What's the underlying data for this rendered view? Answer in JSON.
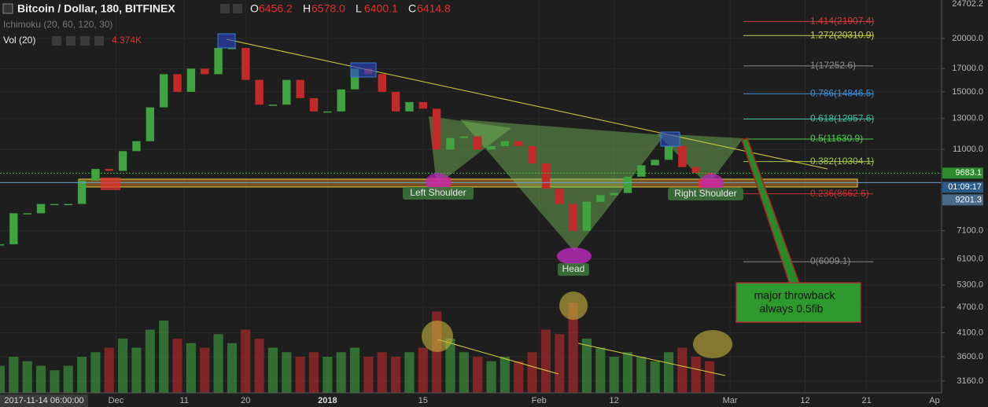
{
  "header": {
    "symbol": "Bitcoin / Dollar, 180, BITFINEX",
    "ohlc": [
      {
        "key": "O",
        "value": "6456.2"
      },
      {
        "key": "H",
        "value": "6578.0"
      },
      {
        "key": "L",
        "value": "6400.1"
      },
      {
        "key": "C",
        "value": "6414.8"
      }
    ],
    "indicator": "Ichimoku (20, 60, 120, 30)",
    "volume_label": "Vol (20)",
    "volume_value": "4.374K"
  },
  "chart_data": {
    "type": "candlestick",
    "x": [
      "2017-11-14",
      "2017-11-16",
      "2017-11-18",
      "2017-11-20",
      "2017-11-22",
      "2017-11-24",
      "2017-11-26",
      "2017-11-28",
      "2017-11-30",
      "2017-12-02",
      "2017-12-04",
      "2017-12-06",
      "2017-12-08",
      "2017-12-10",
      "2017-12-12",
      "2017-12-14",
      "2017-12-16",
      "2017-12-18",
      "2017-12-20",
      "2017-12-22",
      "2017-12-24",
      "2017-12-26",
      "2017-12-28",
      "2017-12-30",
      "2018-01-01",
      "2018-01-03",
      "2018-01-05",
      "2018-01-07",
      "2018-01-09",
      "2018-01-11",
      "2018-01-13",
      "2018-01-15",
      "2018-01-17",
      "2018-01-19",
      "2018-01-21",
      "2018-01-23",
      "2018-01-25",
      "2018-01-27",
      "2018-01-29",
      "2018-01-31",
      "2018-02-02",
      "2018-02-04",
      "2018-02-06",
      "2018-02-08",
      "2018-02-10",
      "2018-02-12",
      "2018-02-14",
      "2018-02-16",
      "2018-02-18",
      "2018-02-20",
      "2018-02-22",
      "2018-02-24",
      "2018-02-26"
    ],
    "values": [
      6600,
      7800,
      7800,
      8200,
      8200,
      8200,
      9300,
      9900,
      9800,
      10900,
      11500,
      13800,
      16500,
      15000,
      17000,
      16500,
      19000,
      19000,
      16000,
      14000,
      14000,
      16000,
      14500,
      13500,
      13500,
      15200,
      17000,
      16500,
      15000,
      13500,
      14200,
      13700,
      11000,
      11700,
      11800,
      11000,
      11200,
      11500,
      11200,
      10200,
      8900,
      8200,
      7100,
      8300,
      8600,
      8700,
      9500,
      10100,
      10400,
      11200,
      10000,
      9700,
      9600
    ],
    "volume": [
      6,
      8,
      7,
      6,
      5,
      6,
      8,
      9,
      10,
      12,
      10,
      14,
      16,
      12,
      11,
      10,
      13,
      11,
      14,
      12,
      10,
      9,
      8,
      9,
      8,
      9,
      10,
      8,
      9,
      8,
      9,
      10,
      18,
      12,
      9,
      8,
      7,
      8,
      7,
      9,
      14,
      13,
      20,
      12,
      10,
      8,
      9,
      8,
      7,
      9,
      10,
      8,
      7
    ],
    "up_color": "#3fa33f",
    "down_color": "#c22a2a",
    "ylim": [
      2965,
      24600
    ],
    "log_scale": true,
    "yticks": [
      24702.2,
      {
        "value": 20000,
        "label": "20000.0"
      },
      {
        "value": 17000,
        "label": "17000.0"
      },
      {
        "value": 15000,
        "label": "15000.0"
      },
      {
        "value": 13000,
        "label": "13000.0"
      },
      {
        "value": 11000,
        "label": "11000.0"
      },
      {
        "value": 7100,
        "label": "7100.0"
      },
      {
        "value": 6100,
        "label": "6100.0"
      },
      {
        "value": 5300,
        "label": "5300.0"
      },
      {
        "value": 4700,
        "label": "4700.0"
      },
      {
        "value": 4100,
        "label": "4100.0"
      },
      {
        "value": 3600,
        "label": "3600.0"
      },
      {
        "value": 3160,
        "label": "3160.0"
      }
    ],
    "xlim": [
      "2017-11-14",
      "2018-04-01"
    ],
    "xticks": [
      {
        "value": "2017-12-01",
        "label": "Dec"
      },
      {
        "value": "2017-12-11",
        "label": "11"
      },
      {
        "value": "2017-12-20",
        "label": "20"
      },
      {
        "value": "2018-01-01",
        "label": "2018"
      },
      {
        "value": "2018-01-15",
        "label": "15"
      },
      {
        "value": "2018-02-01",
        "label": "Feb"
      },
      {
        "value": "2018-02-12",
        "label": "12"
      },
      {
        "value": "2018-03-01",
        "label": "Mar"
      },
      {
        "value": "2018-03-12",
        "label": "12"
      },
      {
        "value": "2018-03-21",
        "label": "21"
      },
      {
        "value": "2018-04-01",
        "label": "Ap"
      }
    ],
    "cursor_label": "2017-11-14 06:00:00",
    "grid": true,
    "price_tags": [
      {
        "value": 9683.1,
        "color": "#2e8b2e"
      },
      {
        "value": 9201.3,
        "color": "#4a6a8a"
      }
    ],
    "countdown": "01:09:17",
    "fib_levels": [
      {
        "value": 21907.4,
        "label": "1.414(21907.4)",
        "color": "#d23b3b"
      },
      {
        "value": 20310.9,
        "label": "1.272(20310.9)",
        "color": "#c8d24a"
      },
      {
        "value": 17252.6,
        "label": "1(17252.6)",
        "color": "#8a8a8a"
      },
      {
        "value": 14846.5,
        "label": "0.786(14846.5)",
        "color": "#3d8fd6"
      },
      {
        "value": 12957.6,
        "label": "0.618(12957.6)",
        "color": "#3fc0a0"
      },
      {
        "value": 11630.9,
        "label": "0.5(11630.9)",
        "color": "#4ccf4c"
      },
      {
        "value": 10304.1,
        "label": "0.382(10304.1)",
        "color": "#a4c84a"
      },
      {
        "value": 8662.6,
        "label": "0.236(8662.6)",
        "color": "#c83030"
      },
      {
        "value": 6009.1,
        "label": "0(6009.1)",
        "color": "#8a8a8a"
      }
    ],
    "annotations": {
      "left_shoulder": "Left Shoulder",
      "head": "Head",
      "right_shoulder": "Right Shoulder",
      "note": [
        "major throwback",
        "always 0.5fib"
      ]
    }
  }
}
